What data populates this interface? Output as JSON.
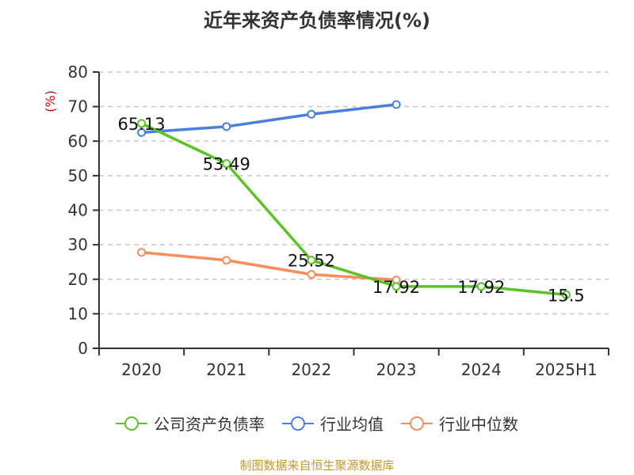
{
  "title": "近年来资产负债率情况(%)",
  "source": "制图数据来自恒生聚源数据库",
  "y_unit": "(%)",
  "legend": [
    {
      "label": "公司资产负债率",
      "color": "#5bc424"
    },
    {
      "label": "行业均值",
      "color": "#4a7fdc"
    },
    {
      "label": "行业中位数",
      "color": "#fa8c5a"
    }
  ],
  "chart_data": {
    "type": "line",
    "title": "近年来资产负债率情况(%)",
    "xlabel": "",
    "ylabel": "(%)",
    "categories": [
      "2020",
      "2021",
      "2022",
      "2023",
      "2024",
      "2025H1"
    ],
    "ylim": [
      0,
      80
    ],
    "yticks": [
      0,
      10,
      20,
      30,
      40,
      50,
      60,
      70,
      80
    ],
    "grid": true,
    "legend_position": "bottom",
    "series": [
      {
        "name": "公司资产负债率",
        "color": "#5bc424",
        "values": [
          65.13,
          53.49,
          25.52,
          17.92,
          17.92,
          15.5
        ],
        "labels": [
          "65.13",
          "53.49",
          "25.52",
          "17.92",
          "17.92",
          "15.5"
        ]
      },
      {
        "name": "行业均值",
        "color": "#4a7fdc",
        "values": [
          62.5,
          64.2,
          67.8,
          70.6,
          null,
          null
        ]
      },
      {
        "name": "行业中位数",
        "color": "#fa8c5a",
        "values": [
          27.8,
          25.5,
          21.4,
          19.8,
          null,
          null
        ]
      }
    ]
  }
}
